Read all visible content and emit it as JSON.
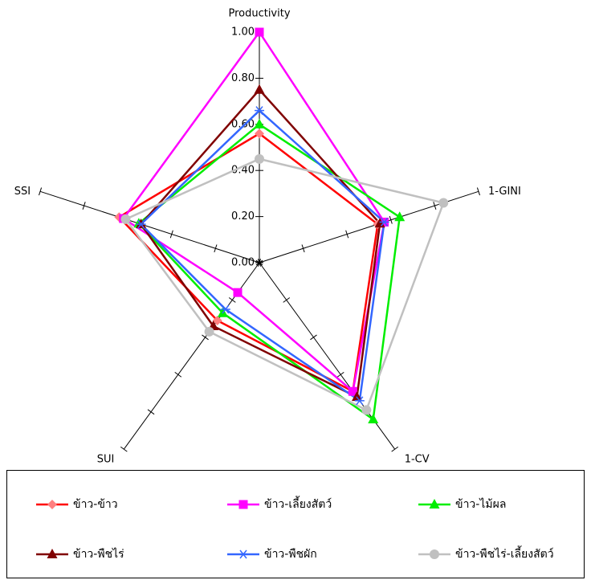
{
  "chart_data": {
    "type": "radar",
    "categories": [
      "Productivity",
      "1-GINI",
      "1-CV",
      "SUI",
      "SSI"
    ],
    "rlim": [
      0,
      1
    ],
    "rticks": [
      {
        "value": 0,
        "label": "0.00"
      },
      {
        "value": 0.2,
        "label": "0.20"
      },
      {
        "value": 0.4,
        "label": "0.40"
      },
      {
        "value": 0.6,
        "label": "0.60"
      },
      {
        "value": 0.8,
        "label": "0.80"
      },
      {
        "value": 1,
        "label": "1.00"
      }
    ],
    "legend": "bottom",
    "series": [
      {
        "name": "ข้าว-ข้าว",
        "color": "#ff0000",
        "marker_color": "#ff8080",
        "marker": "diamond",
        "values": [
          0.56,
          0.54,
          0.69,
          0.31,
          0.64
        ]
      },
      {
        "name": "ข้าว-เลี้ยงสัตว์",
        "color": "#ff00ff",
        "marker_color": "#ff00ff",
        "marker": "square",
        "values": [
          1.0,
          0.57,
          0.69,
          0.16,
          0.62
        ]
      },
      {
        "name": "ข้าว-ไม้ผล",
        "color": "#00ee00",
        "marker_color": "#00ee00",
        "marker": "triangle",
        "values": [
          0.6,
          0.64,
          0.84,
          0.27,
          0.55
        ]
      },
      {
        "name": "ข้าว-พืชไร่",
        "color": "#800000",
        "marker_color": "#800000",
        "marker": "triangle",
        "values": [
          0.75,
          0.55,
          0.72,
          0.34,
          0.54
        ]
      },
      {
        "name": "ข้าว-พืชผัก",
        "color": "#3366ff",
        "marker_color": "#3366ff",
        "marker": "star",
        "values": [
          0.66,
          0.57,
          0.74,
          0.25,
          0.54
        ]
      },
      {
        "name": "ข้าว-พืชไร่-เลี้ยงสัตว์",
        "color": "#c0c0c0",
        "marker_color": "#c0c0c0",
        "marker": "circle",
        "values": [
          0.45,
          0.84,
          0.79,
          0.37,
          0.61
        ]
      }
    ]
  }
}
